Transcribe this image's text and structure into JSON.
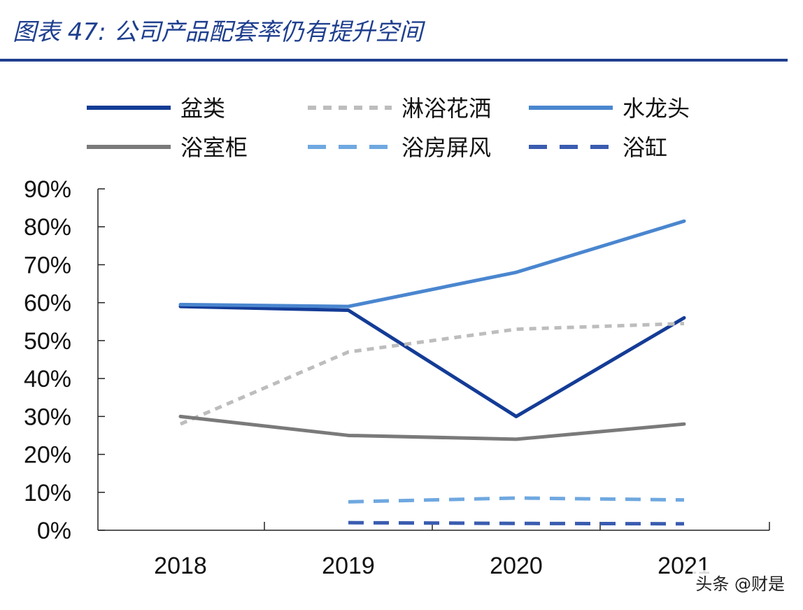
{
  "header": {
    "title": "图表 47:  公司产品配套率仍有提升空间"
  },
  "watermark": "头条 @财是",
  "colors": {
    "title": "#1f3f8f",
    "axis": "#222222",
    "盆类": "#143c96",
    "淋浴花洒": "#bdbdbd",
    "水龙头": "#4a86cf",
    "浴室柜": "#7a7a7a",
    "浴房屏风": "#6fa8e0",
    "浴缸": "#3a5cb0"
  },
  "chart_data": {
    "type": "line",
    "title": "",
    "categories": [
      "2018",
      "2019",
      "2020",
      "2021"
    ],
    "ylim": [
      0,
      90
    ],
    "yticks": [
      "0%",
      "10%",
      "20%",
      "30%",
      "40%",
      "50%",
      "60%",
      "70%",
      "80%",
      "90%"
    ],
    "legend_position": "top",
    "series": [
      {
        "name": "盆类",
        "style": "solid",
        "color": "#143c96",
        "values": [
          59,
          58,
          30,
          56
        ]
      },
      {
        "name": "淋浴花洒",
        "style": "dotted",
        "color": "#bdbdbd",
        "values": [
          28,
          47,
          53,
          54.5
        ]
      },
      {
        "name": "水龙头",
        "style": "solid",
        "color": "#4a86cf",
        "values": [
          59.5,
          59,
          68,
          81.5
        ]
      },
      {
        "name": "浴室柜",
        "style": "solid",
        "color": "#7a7a7a",
        "values": [
          30,
          25,
          24,
          28
        ]
      },
      {
        "name": "浴房屏风",
        "style": "dashed",
        "color": "#6fa8e0",
        "values": [
          null,
          7.5,
          8.5,
          8
        ]
      },
      {
        "name": "浴缸",
        "style": "dashed",
        "color": "#3a5cb0",
        "values": [
          null,
          2,
          1.8,
          1.7
        ]
      }
    ]
  }
}
